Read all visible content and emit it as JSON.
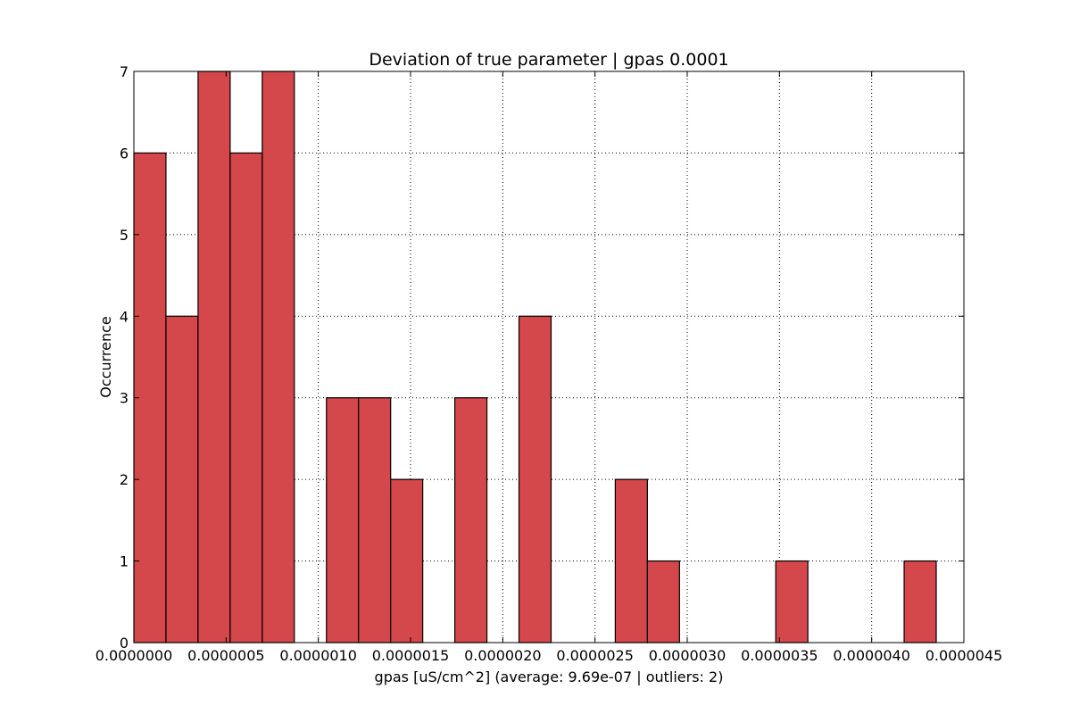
{
  "chart_data": {
    "type": "bar",
    "title": "Deviation of true parameter | gpas 0.0001",
    "xlabel": "gpas [uS/cm^2] (average: 9.69e-07 | outliers: 2)",
    "ylabel": "Occurrence",
    "xlim": [
      0.0,
      4.5e-06
    ],
    "ylim": [
      0,
      7
    ],
    "x_ticks": [
      0.0,
      5e-07,
      1e-06,
      1.5e-06,
      2e-06,
      2.5e-06,
      3e-06,
      3.5e-06,
      4e-06,
      4.5e-06
    ],
    "x_tick_labels": [
      "0.0000000",
      "0.0000005",
      "0.0000010",
      "0.0000015",
      "0.0000020",
      "0.0000025",
      "0.0000030",
      "0.0000035",
      "0.0000040",
      "0.0000045"
    ],
    "y_ticks": [
      0,
      1,
      2,
      3,
      4,
      5,
      6,
      7
    ],
    "y_tick_labels": [
      "0",
      "1",
      "2",
      "3",
      "4",
      "5",
      "6",
      "7"
    ],
    "grid": true,
    "bar_color": "#d4474a",
    "bin_width": 1.74e-07,
    "bin_starts": [
      0.0,
      1.74e-07,
      3.48e-07,
      5.22e-07,
      6.96e-07,
      8.7e-07,
      1.044e-06,
      1.218e-06,
      1.392e-06,
      1.566e-06,
      1.74e-06,
      1.914e-06,
      2.088e-06,
      2.262e-06,
      2.436e-06,
      2.61e-06,
      2.784e-06,
      2.958e-06,
      3.132e-06,
      3.306e-06,
      3.48e-06,
      3.654e-06,
      3.828e-06,
      4.002e-06,
      4.176e-06
    ],
    "values": [
      6,
      4,
      7,
      6,
      7,
      0,
      3,
      3,
      2,
      0,
      3,
      0,
      4,
      0,
      0,
      2,
      1,
      0,
      0,
      0,
      1,
      0,
      0,
      0,
      1
    ]
  }
}
